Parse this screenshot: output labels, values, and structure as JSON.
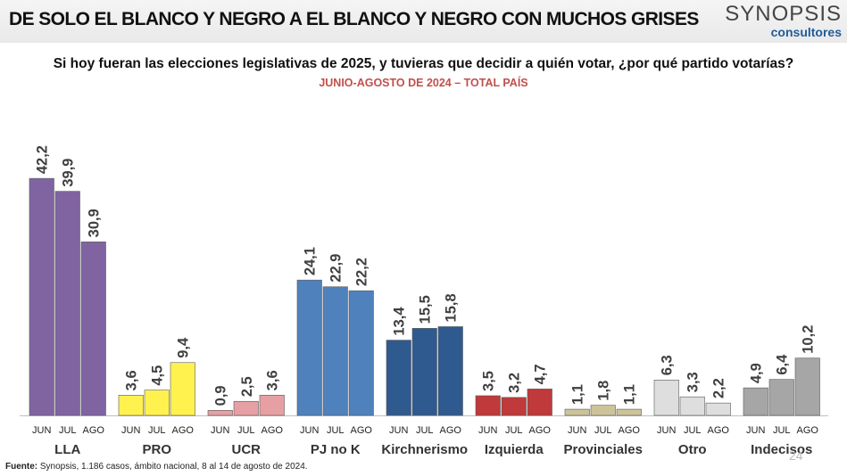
{
  "header": {
    "title": "DE SOLO EL BLANCO Y NEGRO A EL BLANCO Y NEGRO CON MUCHOS GRISES",
    "logo_name": "SYNOPSIS",
    "logo_sub": "consultores"
  },
  "footer": {
    "source_label": "Fuente:",
    "source_text": " Synopsis, 1.186 casos, ámbito nacional, 8 al 14 de agosto de 2024.",
    "page_number": "24"
  },
  "chart_data": {
    "type": "bar",
    "title": "Si hoy fueran las elecciones legislativas de 2025, y tuvieras que decidir a quién votar, ¿por qué partido votarías?",
    "subtitle": "JUNIO-AGOSTO DE 2024 – TOTAL PAÍS",
    "months": [
      "JUN",
      "JUL",
      "AGO"
    ],
    "ylim": [
      0,
      45
    ],
    "grid": false,
    "groups": [
      {
        "name": "LLA",
        "values": [
          42.2,
          39.9,
          30.9
        ],
        "labels": [
          "42,2",
          "39,9",
          "30,9"
        ],
        "color": "#8064a2"
      },
      {
        "name": "PRO",
        "values": [
          3.6,
          4.5,
          9.4
        ],
        "labels": [
          "3,6",
          "4,5",
          "9,4"
        ],
        "color": "#fff24f"
      },
      {
        "name": "UCR",
        "values": [
          0.9,
          2.5,
          3.6
        ],
        "labels": [
          "0,9",
          "2,5",
          "3,6"
        ],
        "color": "#e6a0a4"
      },
      {
        "name": "PJ no K",
        "values": [
          24.1,
          22.9,
          22.2
        ],
        "labels": [
          "24,1",
          "22,9",
          "22,2"
        ],
        "color": "#4f81bd"
      },
      {
        "name": "Kirchnerismo",
        "values": [
          13.4,
          15.5,
          15.8
        ],
        "labels": [
          "13,4",
          "15,5",
          "15,8"
        ],
        "color": "#2f5a8f"
      },
      {
        "name": "Izquierda",
        "values": [
          3.5,
          3.2,
          4.7
        ],
        "labels": [
          "3,5",
          "3,2",
          "4,7"
        ],
        "color": "#c0393b"
      },
      {
        "name": "Provinciales",
        "values": [
          1.1,
          1.8,
          1.1
        ],
        "labels": [
          "1,1",
          "1,8",
          "1,1"
        ],
        "color": "#cdc39a"
      },
      {
        "name": "Otro",
        "values": [
          6.3,
          3.3,
          2.2
        ],
        "labels": [
          "6,3",
          "3,3",
          "2,2"
        ],
        "color": "#dedede"
      },
      {
        "name": "Indecisos",
        "values": [
          4.9,
          6.4,
          10.2
        ],
        "labels": [
          "4,9",
          "6,4",
          "10,2"
        ],
        "color": "#a6a6a6"
      }
    ]
  }
}
